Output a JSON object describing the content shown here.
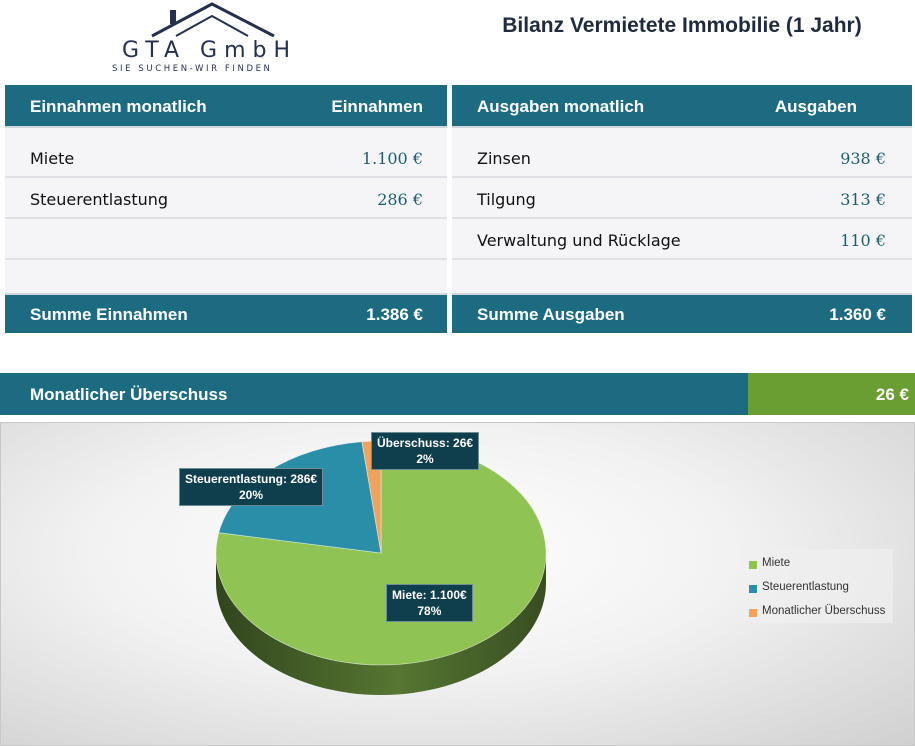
{
  "logo": {
    "name": "GTA GmbH",
    "slogan": "SIE SUCHEN-WIR FINDEN"
  },
  "title": "Bilanz Vermietete Immobilie (1 Jahr)",
  "income": {
    "header_label": "Einnahmen monatlich",
    "header_value": "Einnahmen",
    "rows": [
      {
        "label": "Miete",
        "value": "1.100 €"
      },
      {
        "label": "Steuerentlastung",
        "value": "286 €"
      }
    ],
    "sum_label": "Summe Einnahmen",
    "sum_value": "1.386 €"
  },
  "expenses": {
    "header_label": "Ausgaben monatlich",
    "header_value": "Ausgaben",
    "rows": [
      {
        "label": "Zinsen",
        "value": "938 €"
      },
      {
        "label": "Tilgung",
        "value": "313 €"
      },
      {
        "label": "Verwaltung und Rücklage",
        "value": "110 €"
      }
    ],
    "sum_label": "Summe Ausgaben",
    "sum_value": "1.360 €"
  },
  "surplus": {
    "label": "Monatlicher Überschuss",
    "value": "26 €"
  },
  "colors": {
    "header": "#1c6b80",
    "surplus": "#6a9e32",
    "miete": "#8fc454",
    "steuer": "#2a8ea8",
    "ueberschuss": "#f0a35e"
  },
  "chart_data": {
    "type": "pie",
    "style": "3d",
    "start_angle_deg": 0,
    "slices": [
      {
        "name": "Miete",
        "value": 1100,
        "percent": 78,
        "label_line1": "Miete: 1.100€",
        "label_line2": "78%",
        "color": "#8fc454"
      },
      {
        "name": "Steuerentlastung",
        "value": 286,
        "percent": 20,
        "label_line1": "Steuerentlastung: 286€",
        "label_line2": "20%",
        "color": "#2a8ea8"
      },
      {
        "name": "Monatlicher Überschuss",
        "value": 26,
        "percent": 2,
        "label_line1": "Überschuss: 26€",
        "label_line2": "2%",
        "color": "#f0a35e"
      }
    ],
    "legend": [
      "Miete",
      "Steuerentlastung",
      "Monatlicher Überschuss"
    ],
    "legend_position": "right"
  }
}
